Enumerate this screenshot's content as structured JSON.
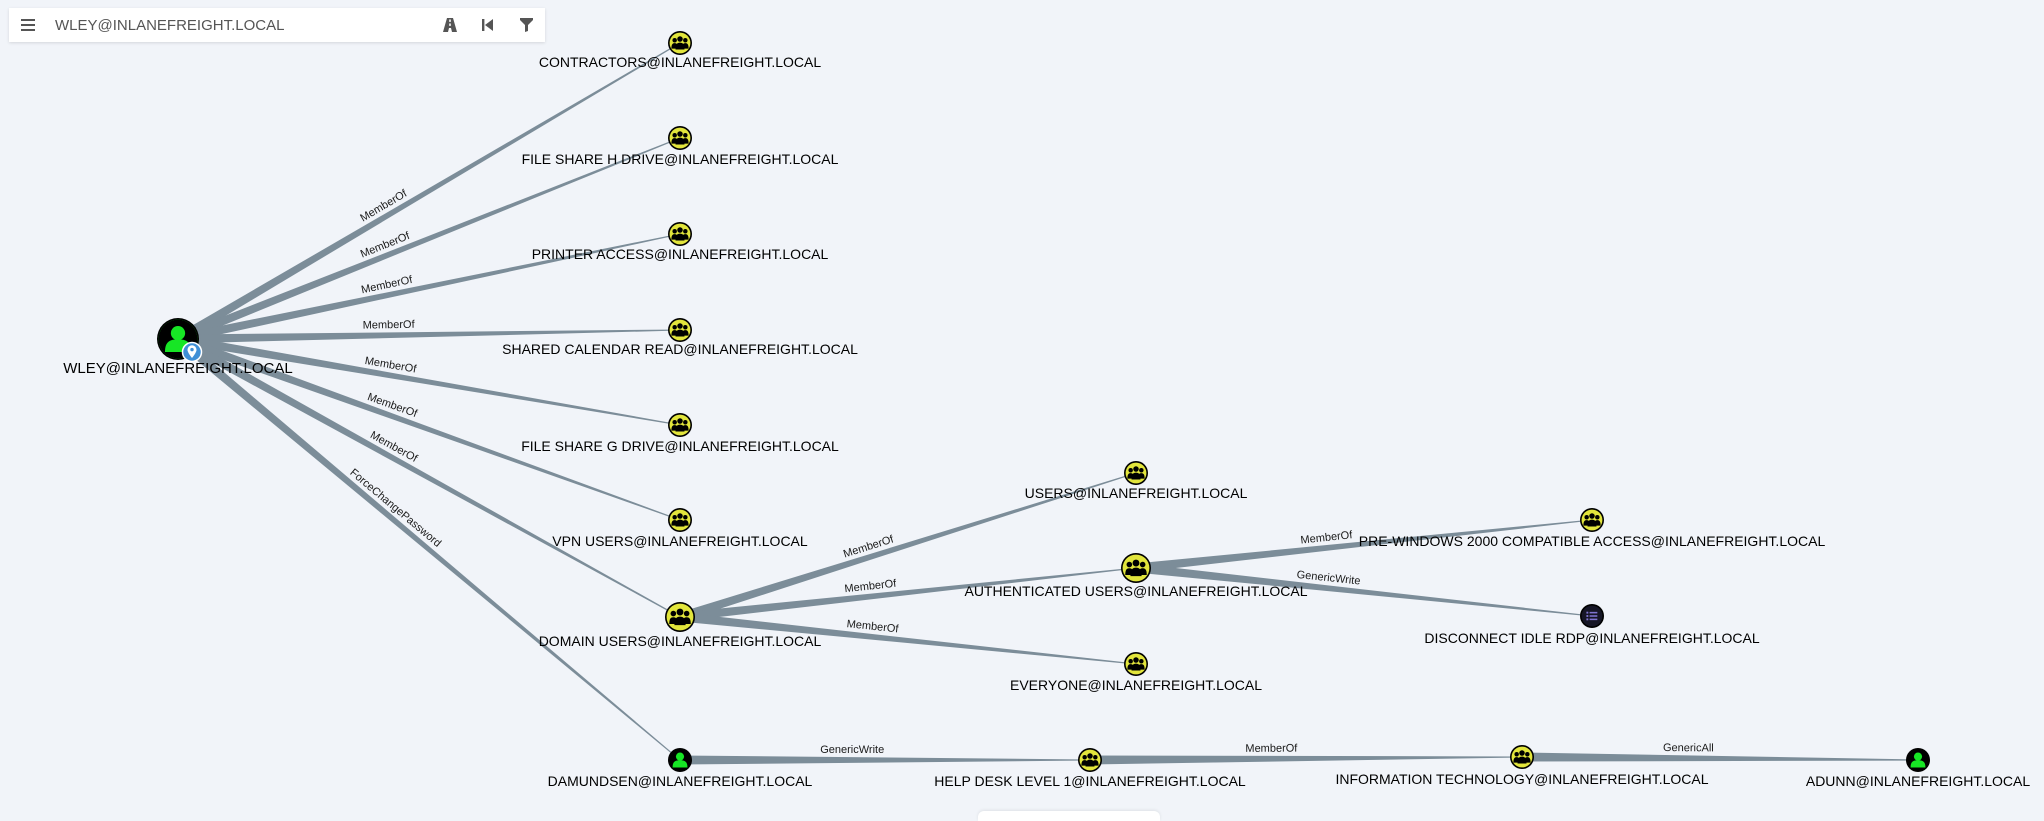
{
  "search": {
    "value": "WLEY@INLANEFREIGHT.LOCAL",
    "placeholder": "WLEY@INLANEFREIGHT.LOCAL"
  },
  "toolbar": {
    "menu_icon": "hamburger-menu-icon",
    "tools": [
      "pathfinding-road-icon",
      "back-step-icon",
      "filter-icon"
    ]
  },
  "colors": {
    "group_fill": "#e2e53c",
    "user_fill": "#17e625",
    "gpo_fill": "#7f74cf",
    "edge": "#7c8d99",
    "start_marker": "#3f8fd6"
  },
  "nodes": [
    {
      "id": "wley",
      "label": "WLEY@INLANEFREIGHT.LOCAL",
      "type": "user",
      "start": true
    },
    {
      "id": "contractors",
      "label": "CONTRACTORS@INLANEFREIGHT.LOCAL",
      "type": "group"
    },
    {
      "id": "fileshare_h",
      "label": "FILE SHARE H DRIVE@INLANEFREIGHT.LOCAL",
      "type": "group"
    },
    {
      "id": "printer",
      "label": "PRINTER ACCESS@INLANEFREIGHT.LOCAL",
      "type": "group"
    },
    {
      "id": "calendar",
      "label": "SHARED CALENDAR READ@INLANEFREIGHT.LOCAL",
      "type": "group"
    },
    {
      "id": "fileshare_g",
      "label": "FILE SHARE G DRIVE@INLANEFREIGHT.LOCAL",
      "type": "group"
    },
    {
      "id": "vpn",
      "label": "VPN USERS@INLANEFREIGHT.LOCAL",
      "type": "group"
    },
    {
      "id": "domain_users",
      "label": "DOMAIN USERS@INLANEFREIGHT.LOCAL",
      "type": "group",
      "large": true
    },
    {
      "id": "users",
      "label": "USERS@INLANEFREIGHT.LOCAL",
      "type": "group"
    },
    {
      "id": "auth_users",
      "label": "AUTHENTICATED USERS@INLANEFREIGHT.LOCAL",
      "type": "group",
      "large": true
    },
    {
      "id": "everyone",
      "label": "EVERYONE@INLANEFREIGHT.LOCAL",
      "type": "group"
    },
    {
      "id": "prewin",
      "label": "PRE-WINDOWS 2000 COMPATIBLE ACCESS@INLANEFREIGHT.LOCAL",
      "type": "group"
    },
    {
      "id": "disconnect",
      "label": "DISCONNECT IDLE RDP@INLANEFREIGHT.LOCAL",
      "type": "gpo"
    },
    {
      "id": "damundsen",
      "label": "DAMUNDSEN@INLANEFREIGHT.LOCAL",
      "type": "user"
    },
    {
      "id": "helpdesk",
      "label": "HELP DESK LEVEL 1@INLANEFREIGHT.LOCAL",
      "type": "group"
    },
    {
      "id": "infotech",
      "label": "INFORMATION TECHNOLOGY@INLANEFREIGHT.LOCAL",
      "type": "group"
    },
    {
      "id": "adunn",
      "label": "ADUNN@INLANEFREIGHT.LOCAL",
      "type": "user"
    }
  ],
  "edges": [
    {
      "from": "wley",
      "to": "contractors",
      "label": "MemberOf"
    },
    {
      "from": "wley",
      "to": "fileshare_h",
      "label": "MemberOf"
    },
    {
      "from": "wley",
      "to": "printer",
      "label": "MemberOf"
    },
    {
      "from": "wley",
      "to": "calendar",
      "label": "MemberOf"
    },
    {
      "from": "wley",
      "to": "fileshare_g",
      "label": "MemberOf"
    },
    {
      "from": "wley",
      "to": "vpn",
      "label": "MemberOf"
    },
    {
      "from": "wley",
      "to": "domain_users",
      "label": "MemberOf"
    },
    {
      "from": "wley",
      "to": "damundsen",
      "label": "ForceChangePassword"
    },
    {
      "from": "domain_users",
      "to": "users",
      "label": "MemberOf"
    },
    {
      "from": "domain_users",
      "to": "auth_users",
      "label": "MemberOf"
    },
    {
      "from": "domain_users",
      "to": "everyone",
      "label": "MemberOf"
    },
    {
      "from": "auth_users",
      "to": "prewin",
      "label": "MemberOf"
    },
    {
      "from": "auth_users",
      "to": "disconnect",
      "label": "GenericWrite"
    },
    {
      "from": "damundsen",
      "to": "helpdesk",
      "label": "GenericWrite"
    },
    {
      "from": "helpdesk",
      "to": "infotech",
      "label": "MemberOf"
    },
    {
      "from": "infotech",
      "to": "adunn",
      "label": "GenericAll"
    }
  ]
}
